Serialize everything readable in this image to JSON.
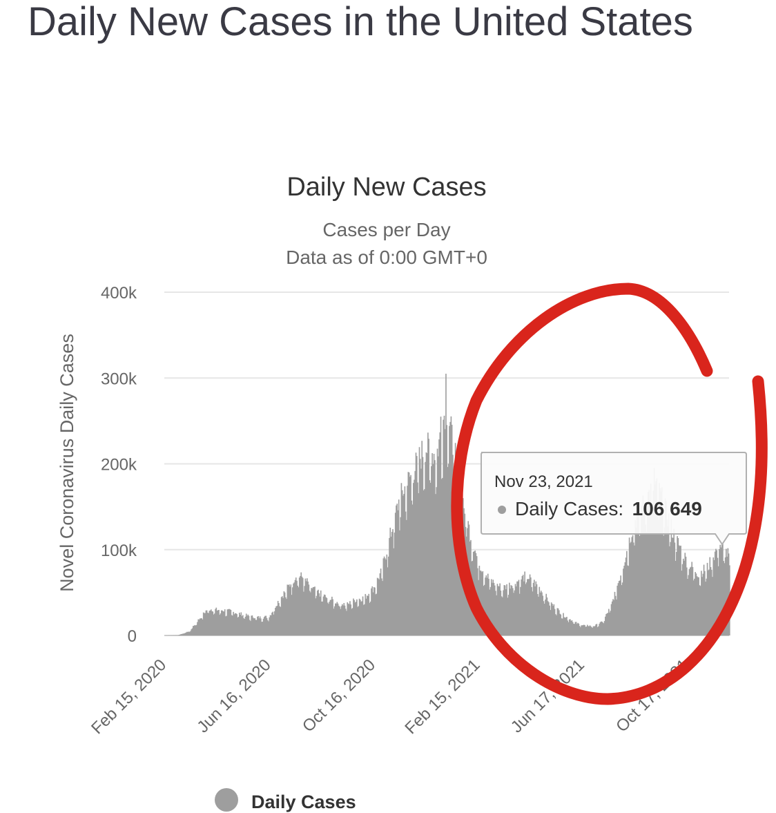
{
  "page": {
    "title": "Daily New Cases in the United States"
  },
  "chart_data": {
    "type": "bar",
    "title": "Daily New Cases",
    "subtitle": "Cases per Day",
    "subtitle2": "Data as of 0:00 GMT+0",
    "ylabel": "Novel Coronavirus Daily Cases",
    "xlabel": "",
    "ylim": [
      0,
      400000
    ],
    "y_ticks": [
      {
        "value": 0,
        "label": "0"
      },
      {
        "value": 100000,
        "label": "100k"
      },
      {
        "value": 200000,
        "label": "200k"
      },
      {
        "value": 300000,
        "label": "300k"
      },
      {
        "value": 400000,
        "label": "400k"
      }
    ],
    "x_start": "2020-02-15",
    "x_end": "2021-12-05",
    "x_ticks": [
      {
        "date": "2020-02-15",
        "label": "Feb 15, 2020"
      },
      {
        "date": "2020-06-16",
        "label": "Jun 16, 2020"
      },
      {
        "date": "2020-10-16",
        "label": "Oct 16, 2020"
      },
      {
        "date": "2021-02-15",
        "label": "Feb 15, 2021"
      },
      {
        "date": "2021-06-17",
        "label": "Jun 17, 2021"
      },
      {
        "date": "2021-10-17",
        "label": "Oct 17, 2021"
      }
    ],
    "series": [
      {
        "name": "Daily Cases",
        "color": "#9e9e9e",
        "keypoints": [
          [
            "2020-02-15",
            0
          ],
          [
            "2020-03-01",
            200
          ],
          [
            "2020-03-15",
            5000
          ],
          [
            "2020-03-25",
            18000
          ],
          [
            "2020-04-05",
            31000
          ],
          [
            "2020-04-15",
            30000
          ],
          [
            "2020-04-28",
            29000
          ],
          [
            "2020-05-10",
            26000
          ],
          [
            "2020-05-25",
            22000
          ],
          [
            "2020-06-05",
            21000
          ],
          [
            "2020-06-16",
            22000
          ],
          [
            "2020-06-25",
            38000
          ],
          [
            "2020-07-05",
            52000
          ],
          [
            "2020-07-17",
            70000
          ],
          [
            "2020-07-25",
            68000
          ],
          [
            "2020-08-05",
            55000
          ],
          [
            "2020-08-20",
            45000
          ],
          [
            "2020-09-05",
            38000
          ],
          [
            "2020-09-15",
            36000
          ],
          [
            "2020-09-25",
            42000
          ],
          [
            "2020-10-05",
            44000
          ],
          [
            "2020-10-16",
            56000
          ],
          [
            "2020-10-25",
            75000
          ],
          [
            "2020-11-05",
            120000
          ],
          [
            "2020-11-15",
            160000
          ],
          [
            "2020-11-25",
            180000
          ],
          [
            "2020-12-05",
            200000
          ],
          [
            "2020-12-15",
            220000
          ],
          [
            "2020-12-28",
            210000
          ],
          [
            "2021-01-03",
            240000
          ],
          [
            "2021-01-08",
            270000
          ],
          [
            "2021-01-15",
            230000
          ],
          [
            "2021-01-25",
            170000
          ],
          [
            "2021-02-05",
            120000
          ],
          [
            "2021-02-15",
            85000
          ],
          [
            "2021-02-28",
            65000
          ],
          [
            "2021-03-15",
            55000
          ],
          [
            "2021-04-01",
            63000
          ],
          [
            "2021-04-12",
            70000
          ],
          [
            "2021-04-25",
            58000
          ],
          [
            "2021-05-10",
            38000
          ],
          [
            "2021-05-25",
            24000
          ],
          [
            "2021-06-10",
            14000
          ],
          [
            "2021-06-17",
            12000
          ],
          [
            "2021-06-30",
            11000
          ],
          [
            "2021-07-10",
            16000
          ],
          [
            "2021-07-20",
            35000
          ],
          [
            "2021-08-01",
            75000
          ],
          [
            "2021-08-15",
            130000
          ],
          [
            "2021-08-30",
            160000
          ],
          [
            "2021-09-08",
            175000
          ],
          [
            "2021-09-15",
            165000
          ],
          [
            "2021-09-30",
            120000
          ],
          [
            "2021-10-17",
            85000
          ],
          [
            "2021-10-30",
            72000
          ],
          [
            "2021-11-10",
            80000
          ],
          [
            "2021-11-23",
            106649
          ],
          [
            "2021-12-05",
            92000
          ]
        ],
        "spikes": [
          [
            "2021-01-08",
            305000
          ],
          [
            "2021-01-02",
            255000
          ],
          [
            "2021-09-08",
            195000
          ]
        ]
      }
    ],
    "legend": {
      "label": "Daily Cases",
      "position": "bottom"
    },
    "tooltip": {
      "date": "Nov 23, 2021",
      "series_label": "Daily Cases:",
      "value_text": "106 649",
      "value": 106649
    }
  },
  "annotation": {
    "type": "hand-drawn circle",
    "color": "#d9251c"
  }
}
